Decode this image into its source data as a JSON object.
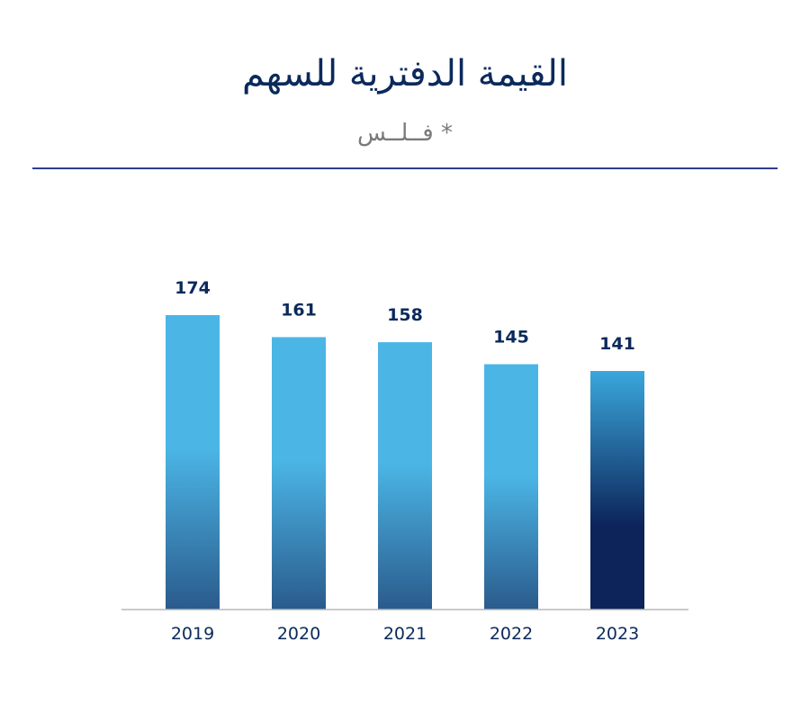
{
  "header": {
    "title": "القيمة الدفترية للسهم",
    "subtitle": "* فــلــس"
  },
  "colors": {
    "title": "#0b2a5b",
    "subtitle": "#7a7a7a",
    "divider": "#2f3f8f",
    "axis": "#b9b9b9",
    "bar_top": "#4bb6e6",
    "bar_bottom": "#2a5b8c",
    "highlight_top": "#3aa7dc",
    "highlight_bottom": "#0c2459",
    "text_dark": "#0b2a5b"
  },
  "chart_data": {
    "type": "bar",
    "title": "القيمة الدفترية للسهم",
    "subtitle": "* فــلــس",
    "categories": [
      "2019",
      "2020",
      "2021",
      "2022",
      "2023"
    ],
    "values": [
      174,
      161,
      158,
      145,
      141
    ],
    "highlight_index": 4,
    "ylim": [
      0,
      174
    ],
    "grid": false,
    "legend": "none",
    "data_labels": true
  }
}
